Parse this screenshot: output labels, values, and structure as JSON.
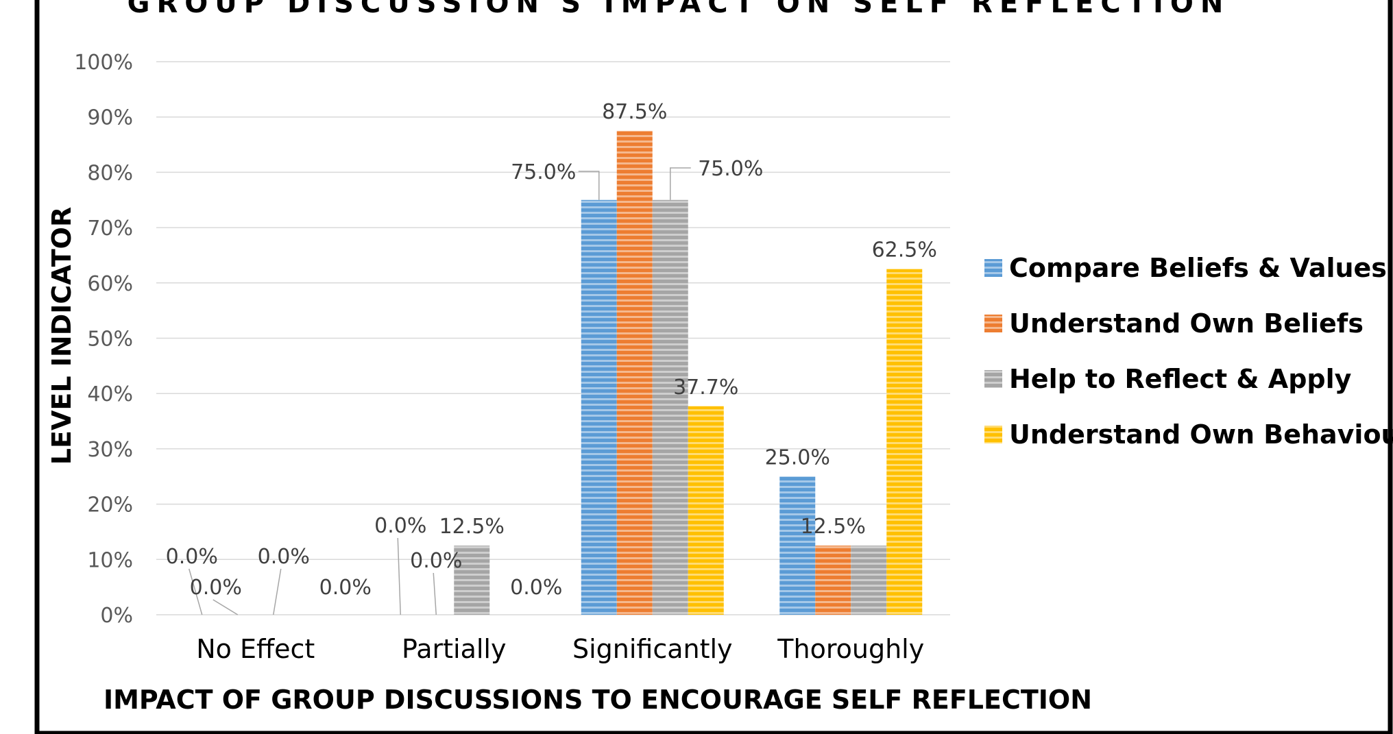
{
  "chart_data": {
    "type": "bar",
    "title": "GROUP DISCUSSION'S IMPACT ON SELF REFLECTION",
    "xlabel": "IMPACT OF GROUP DISCUSSIONS TO ENCOURAGE SELF REFLECTION",
    "ylabel": "LEVEL INDICATOR",
    "ylim": [
      0,
      100
    ],
    "yticks": [
      "0%",
      "10%",
      "20%",
      "30%",
      "40%",
      "50%",
      "60%",
      "70%",
      "80%",
      "90%",
      "100%"
    ],
    "grid": true,
    "legend_position": "right",
    "categories": [
      "No Effect",
      "Partially",
      "Significantly",
      "Thoroughly"
    ],
    "series": [
      {
        "name": "Compare Beliefs & Values",
        "color": "#5b9bd5",
        "values": [
          0,
          0,
          75,
          25
        ],
        "labels": [
          "0.0%",
          "0.0%",
          "75.0%",
          "25.0%"
        ]
      },
      {
        "name": "Understand Own Beliefs",
        "color": "#ed7d31",
        "values": [
          0,
          0,
          87.5,
          12.5
        ],
        "labels": [
          "0.0%",
          "0.0%",
          "87.5%",
          "12.5%"
        ]
      },
      {
        "name": "Help to Reflect & Apply",
        "color": "#a5a5a5",
        "values": [
          0,
          12.5,
          75,
          12.5
        ],
        "labels": [
          "0.0%",
          "12.5%",
          "75.0%",
          ""
        ]
      },
      {
        "name": "Understand Own Behaviour",
        "color": "#ffc000",
        "values": [
          0,
          0,
          37.7,
          62.5
        ],
        "labels": [
          "0.0%",
          "0.0%",
          "37.7%",
          "62.5%"
        ]
      }
    ]
  }
}
